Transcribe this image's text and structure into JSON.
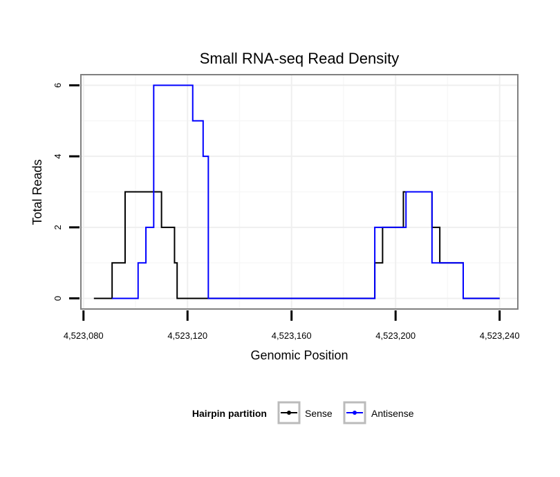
{
  "chart_data": {
    "type": "line",
    "title": "Small RNA-seq Read Density",
    "xlabel": "Genomic Position",
    "ylabel": "Total Reads",
    "xlim": [
      4523079,
      4523247
    ],
    "ylim": [
      -0.3,
      6.3
    ],
    "x_ticks": [
      4523080,
      4523120,
      4523160,
      4523200,
      4523240
    ],
    "x_tick_labels": [
      "4,523,080",
      "4,523,120",
      "4,523,160",
      "4,523,200",
      "4,523,240"
    ],
    "y_ticks": [
      0,
      2,
      4,
      6
    ],
    "y_tick_labels": [
      "0",
      "2",
      "4",
      "6"
    ],
    "grid": true,
    "legend_title": "Hairpin partition",
    "legend_position": "bottom",
    "series": [
      {
        "name": "Sense",
        "color": "#000000",
        "x": [
          4523084,
          4523091,
          4523091,
          4523095,
          4523095,
          4523096,
          4523096,
          4523110,
          4523110,
          4523113,
          4523113,
          4523115,
          4523115,
          4523116,
          4523116,
          4523142,
          4523188,
          4523192,
          4523192,
          4523195,
          4523195,
          4523202,
          4523202,
          4523203,
          4523203,
          4523214,
          4523214,
          4523215,
          4523215,
          4523217,
          4523217,
          4523218,
          4523218,
          4523225,
          4523225,
          4523226,
          4523226,
          4523240
        ],
        "values": [
          0,
          0,
          1,
          1,
          1,
          1,
          3,
          3,
          2,
          2,
          2,
          2,
          1,
          1,
          0,
          0,
          0,
          0,
          1,
          1,
          2,
          2,
          2,
          2,
          3,
          3,
          2,
          2,
          2,
          2,
          1,
          1,
          1,
          1,
          1,
          1,
          0,
          0
        ]
      },
      {
        "name": "Antisense",
        "color": "#0000ff",
        "x": [
          4523091,
          4523101,
          4523101,
          4523102,
          4523102,
          4523104,
          4523104,
          4523105,
          4523105,
          4523107,
          4523107,
          4523122,
          4523122,
          4523124,
          4523124,
          4523126,
          4523126,
          4523127,
          4523127,
          4523128,
          4523128,
          4523142,
          4523191,
          4523192,
          4523192,
          4523194,
          4523194,
          4523200,
          4523200,
          4523201,
          4523201,
          4523204,
          4523204,
          4523205,
          4523205,
          4523214,
          4523214,
          4523215,
          4523215,
          4523224,
          4523224,
          4523226,
          4523226,
          4523240
        ],
        "values": [
          0,
          0,
          1,
          1,
          1,
          1,
          2,
          2,
          2,
          2,
          6,
          6,
          5,
          5,
          5,
          5,
          4,
          4,
          4,
          4,
          0,
          0,
          0,
          0,
          2,
          2,
          2,
          2,
          2,
          2,
          2,
          2,
          3,
          3,
          3,
          3,
          1,
          1,
          1,
          1,
          1,
          1,
          0,
          0
        ]
      }
    ]
  }
}
